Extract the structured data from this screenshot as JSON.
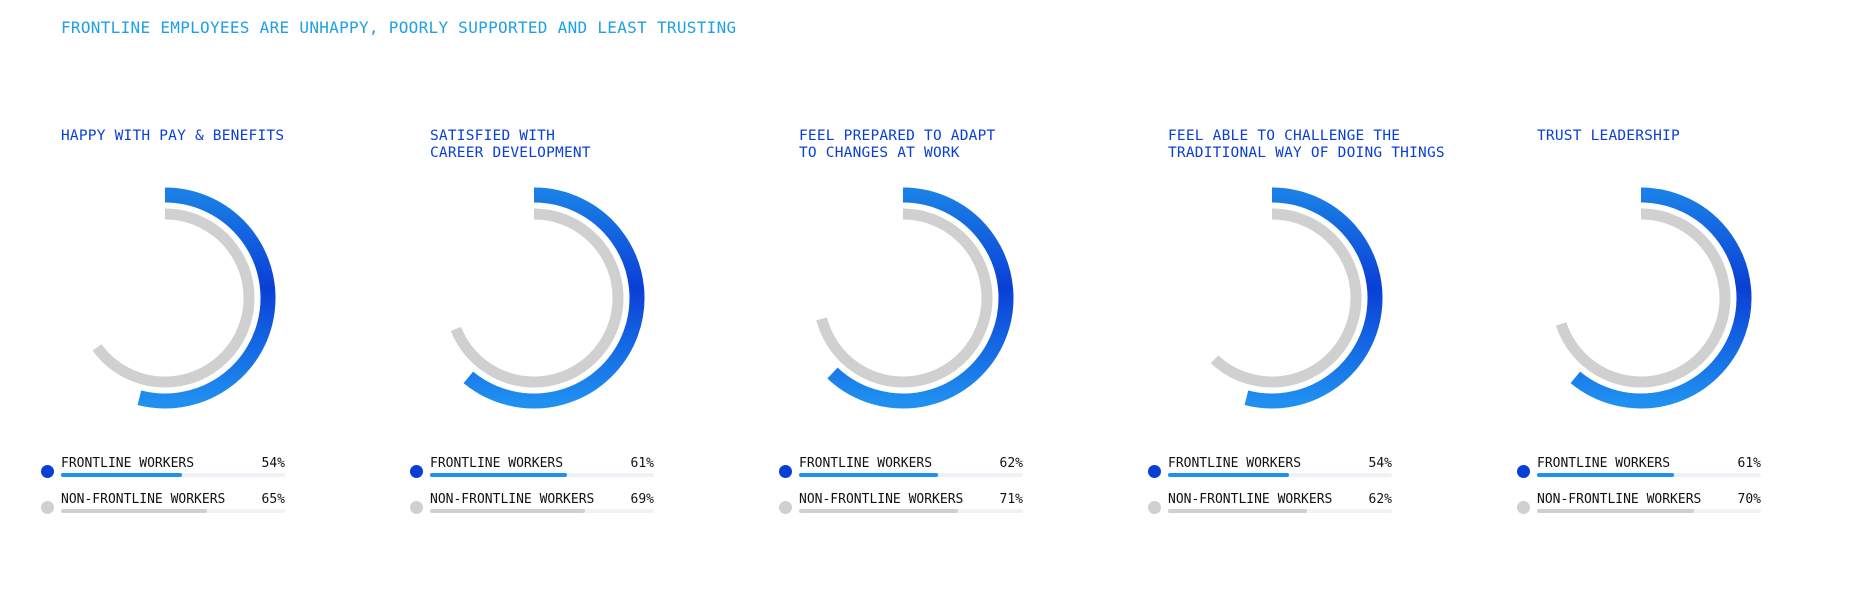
{
  "page_title": "FRONTLINE EMPLOYEES ARE UNHAPPY, POORLY SUPPORTED AND LEAST TRUSTING",
  "colors": {
    "title": "#1ea0e6",
    "frontline": "#0a3fd6",
    "frontline_light": "#1f8ff0",
    "non_frontline": "#d0d0d0",
    "panel_title": "#0a3fd6"
  },
  "chart_data": [
    {
      "type": "donut",
      "title": "HAPPY WITH PAY & BENEFITS",
      "series": [
        {
          "name": "FRONTLINE WORKERS",
          "value": 54,
          "label": "54%"
        },
        {
          "name": "NON-FRONTLINE WORKERS",
          "value": 65,
          "label": "65%"
        }
      ]
    },
    {
      "type": "donut",
      "title": "SATISFIED WITH\nCAREER DEVELOPMENT",
      "series": [
        {
          "name": "FRONTLINE WORKERS",
          "value": 61,
          "label": "61%"
        },
        {
          "name": "NON-FRONTLINE WORKERS",
          "value": 69,
          "label": "69%"
        }
      ]
    },
    {
      "type": "donut",
      "title": "FEEL PREPARED TO ADAPT\nTO CHANGES AT WORK",
      "series": [
        {
          "name": "FRONTLINE WORKERS",
          "value": 62,
          "label": "62%"
        },
        {
          "name": "NON-FRONTLINE WORKERS",
          "value": 71,
          "label": "71%"
        }
      ]
    },
    {
      "type": "donut",
      "title": "FEEL ABLE TO CHALLENGE THE\nTRADITIONAL WAY OF DOING THINGS",
      "series": [
        {
          "name": "FRONTLINE WORKERS",
          "value": 54,
          "label": "54%"
        },
        {
          "name": "NON-FRONTLINE WORKERS",
          "value": 62,
          "label": "62%"
        }
      ]
    },
    {
      "type": "donut",
      "title": "TRUST LEADERSHIP",
      "series": [
        {
          "name": "FRONTLINE WORKERS",
          "value": 61,
          "label": "61%"
        },
        {
          "name": "NON-FRONTLINE WORKERS",
          "value": 70,
          "label": "70%"
        }
      ]
    }
  ]
}
